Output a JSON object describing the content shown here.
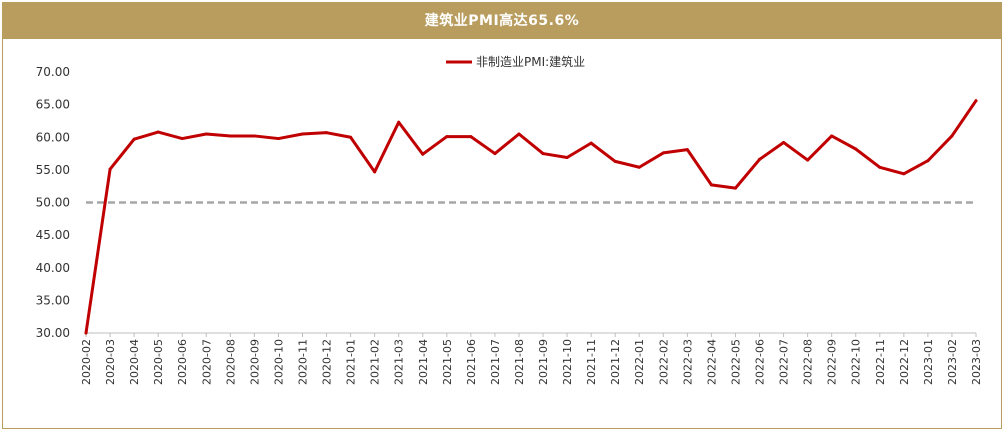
{
  "chart_data": {
    "type": "line",
    "title": "建筑业PMI高达65.6%",
    "xlabel": "",
    "ylabel": "",
    "ylim": [
      30,
      70
    ],
    "yticks": [
      "30.00",
      "35.00",
      "40.00",
      "45.00",
      "50.00",
      "55.00",
      "60.00",
      "65.00",
      "70.00"
    ],
    "reference_line": 50,
    "legend_position": "top-center",
    "categories": [
      "2020-02",
      "2020-03",
      "2020-04",
      "2020-05",
      "2020-06",
      "2020-07",
      "2020-08",
      "2020-09",
      "2020-10",
      "2020-11",
      "2020-12",
      "2021-01",
      "2021-02",
      "2021-03",
      "2021-04",
      "2021-05",
      "2021-06",
      "2021-07",
      "2021-08",
      "2021-09",
      "2021-10",
      "2021-11",
      "2021-12",
      "2022-01",
      "2022-02",
      "2022-03",
      "2022-04",
      "2022-05",
      "2022-06",
      "2022-07",
      "2022-08",
      "2022-09",
      "2022-10",
      "2022-11",
      "2022-12",
      "2023-01",
      "2023-02",
      "2023-03"
    ],
    "series": [
      {
        "name": "非制造业PMI:建筑业",
        "color": "#c00000",
        "values": [
          30.0,
          55.1,
          59.7,
          60.8,
          59.8,
          60.5,
          60.2,
          60.2,
          59.8,
          60.5,
          60.7,
          60.0,
          54.7,
          62.3,
          57.4,
          60.1,
          60.1,
          57.5,
          60.5,
          57.5,
          56.9,
          59.1,
          56.3,
          55.4,
          57.6,
          58.1,
          52.7,
          52.2,
          56.6,
          59.2,
          56.5,
          60.2,
          58.2,
          55.4,
          54.4,
          56.4,
          60.2,
          65.6
        ]
      }
    ],
    "colors": {
      "title_bar": "#b99d5f",
      "reference_line": "#a6a6a6",
      "axis": "#bfbfbf"
    }
  }
}
